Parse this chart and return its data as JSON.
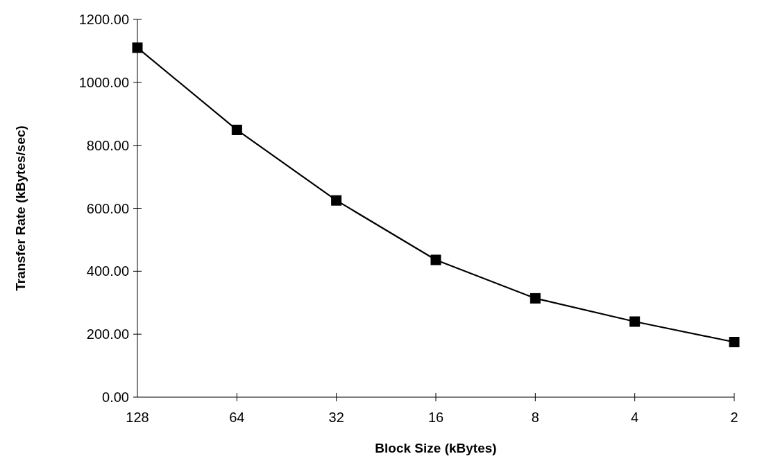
{
  "chart_data": {
    "type": "line",
    "xlabel": "Block Size (kBytes)",
    "ylabel": "Transfer Rate (kBytes/sec)",
    "categories": [
      "128",
      "64",
      "32",
      "16",
      "8",
      "4",
      "2"
    ],
    "series": [
      {
        "color": "#000000",
        "values": [
          1110,
          849,
          625,
          436,
          314,
          240,
          175
        ]
      }
    ],
    "ylim": [
      0,
      1200
    ],
    "yticks": [
      {
        "value": 0,
        "label": "0.00"
      },
      {
        "value": 200,
        "label": "200.00"
      },
      {
        "value": 400,
        "label": "400.00"
      },
      {
        "value": 600,
        "label": "600.00"
      },
      {
        "value": 800,
        "label": "800.00"
      },
      {
        "value": 1000,
        "label": "1000.00"
      },
      {
        "value": 1200,
        "label": "1200.00"
      }
    ],
    "marker": "square",
    "line_style": "solid",
    "grid": false
  }
}
